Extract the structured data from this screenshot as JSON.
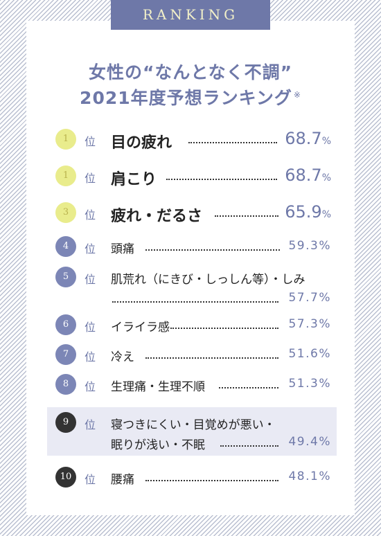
{
  "tab": "RANKING",
  "title_line1": "女性の“なんとなく不調”",
  "title_line2": "2021年度予想ランキング",
  "title_note": "※",
  "rank_suffix": "位",
  "items": [
    {
      "rank": "1",
      "label": "目の疲れ",
      "value": "68.7",
      "unit": "%"
    },
    {
      "rank": "1",
      "label": "肩こり",
      "value": "68.7",
      "unit": "%"
    },
    {
      "rank": "3",
      "label": "疲れ・だるさ",
      "value": "65.9",
      "unit": "%"
    },
    {
      "rank": "4",
      "label": "頭痛",
      "value": "59.3%"
    },
    {
      "rank": "5",
      "label": "肌荒れ（にきび・しっしん等）・しみ",
      "value": "57.7%"
    },
    {
      "rank": "6",
      "label": "イライラ感",
      "value": "57.3%"
    },
    {
      "rank": "7",
      "label": "冷え",
      "value": "51.6%"
    },
    {
      "rank": "8",
      "label": "生理痛・生理不順",
      "value": "51.3%"
    },
    {
      "rank": "9",
      "label": "寝つきにくい・目覚めが悪い・",
      "label2": "眠りが浅い・不眠",
      "value": "49.4%"
    },
    {
      "rank": "10",
      "label": "腰痛",
      "value": "48.1%"
    }
  ],
  "colors": {
    "accent": "#6e78a8",
    "yellow": "#e9ec8c",
    "dark": "#333333"
  }
}
